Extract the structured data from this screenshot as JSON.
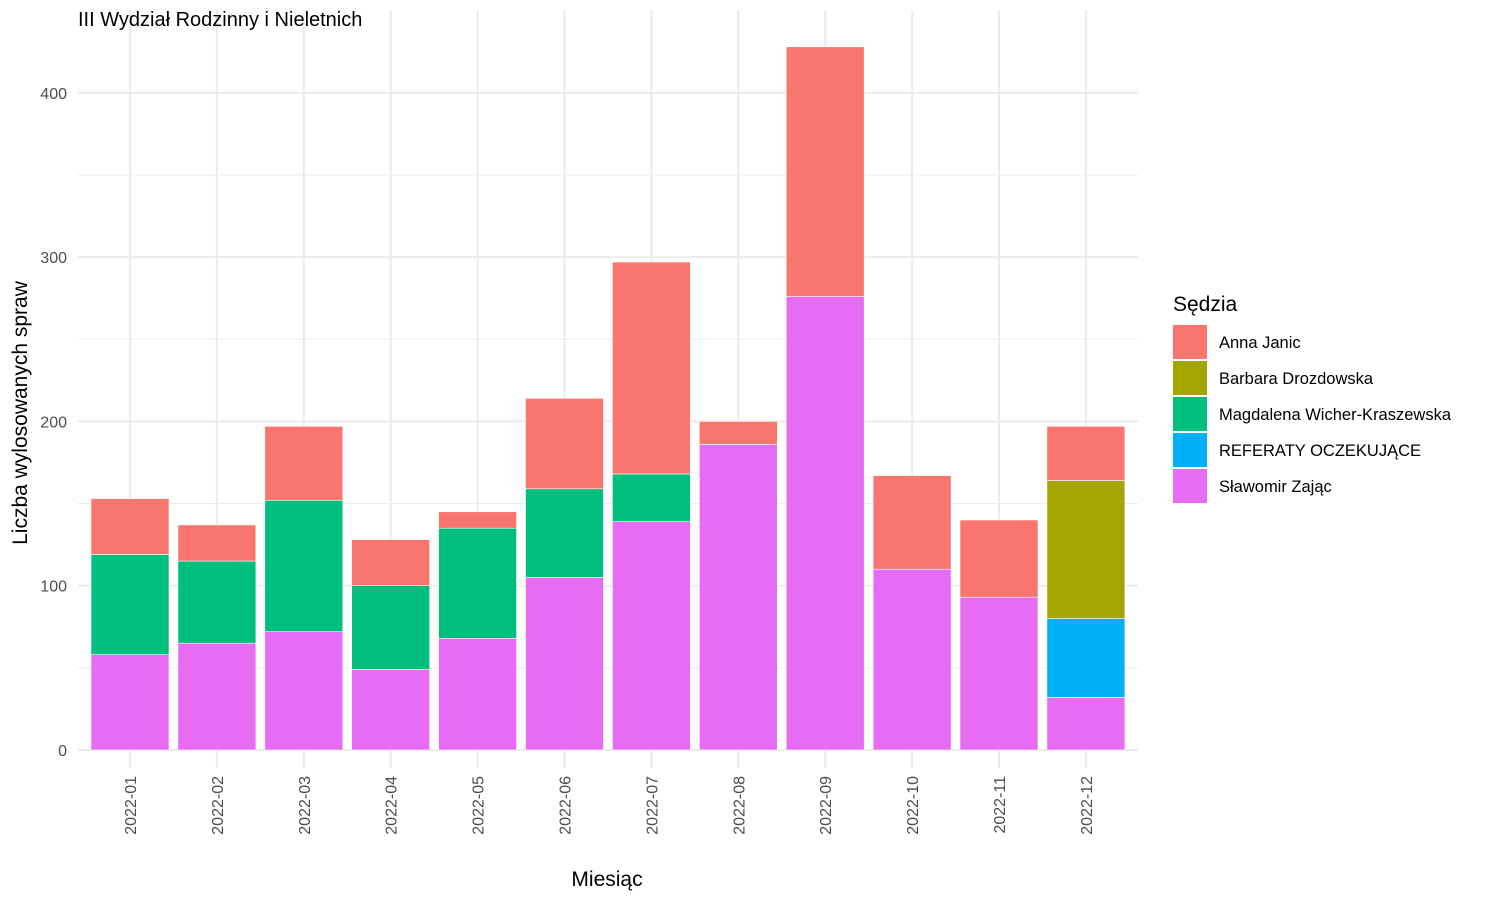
{
  "chart_data": {
    "type": "bar",
    "stacked": true,
    "title": "III Wydział Rodzinny i Nieletnich",
    "xlabel": "Miesiąc",
    "ylabel": "Liczba wylosowanych spraw",
    "ylim": [
      0,
      430
    ],
    "y_ticks": [
      0,
      100,
      200,
      300,
      400
    ],
    "grid": true,
    "legend_title": "Sędzia",
    "legend_position": "right",
    "categories": [
      "2022-01",
      "2022-02",
      "2022-03",
      "2022-04",
      "2022-05",
      "2022-06",
      "2022-07",
      "2022-08",
      "2022-09",
      "2022-10",
      "2022-11",
      "2022-12"
    ],
    "series": [
      {
        "name": "Anna Janic",
        "color": "#F8766D",
        "values": [
          34,
          22,
          45,
          28,
          10,
          55,
          129,
          14,
          152,
          57,
          47,
          33
        ]
      },
      {
        "name": "Barbara Drozdowska",
        "color": "#A3A500",
        "values": [
          0,
          0,
          0,
          0,
          0,
          0,
          0,
          0,
          0,
          0,
          0,
          84
        ]
      },
      {
        "name": "Magdalena Wicher-Kraszewska",
        "color": "#00BF7D",
        "values": [
          61,
          50,
          80,
          51,
          67,
          54,
          29,
          0,
          0,
          0,
          0,
          0
        ]
      },
      {
        "name": "REFERATY OCZEKUJĄCE",
        "color": "#00B0F6",
        "values": [
          0,
          0,
          0,
          0,
          0,
          0,
          0,
          0,
          0,
          0,
          0,
          48
        ]
      },
      {
        "name": "Sławomir Zając",
        "color": "#E76BF3",
        "values": [
          58,
          65,
          72,
          49,
          68,
          105,
          139,
          186,
          276,
          110,
          93,
          32
        ]
      }
    ]
  }
}
